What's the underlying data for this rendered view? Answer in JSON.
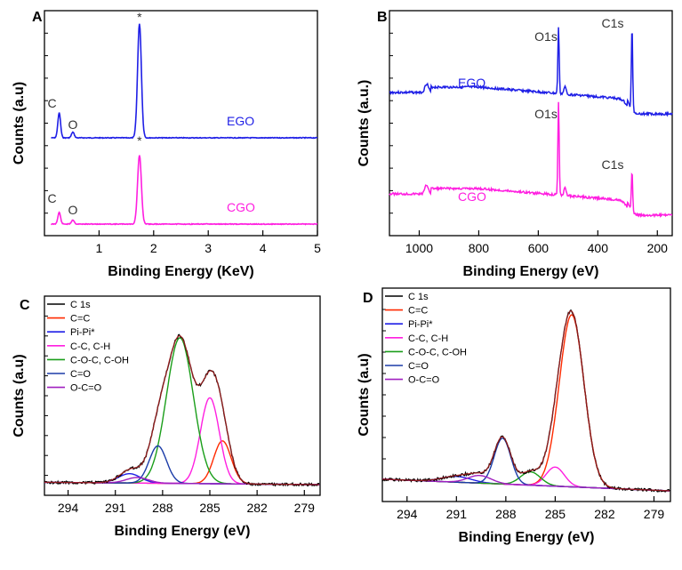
{
  "chart_data": [
    {
      "panel": "A",
      "type": "line",
      "title": "",
      "xlabel": "Binding Energy (KeV)",
      "ylabel": "Counts (a.u)",
      "xlim": [
        0,
        5
      ],
      "xticks": [
        "1",
        "2",
        "3",
        "4",
        "5"
      ],
      "series": [
        {
          "name": "EGO",
          "color": "#1f1fe6",
          "peaks": [
            {
              "x": 0.27,
              "h": 0.22
            },
            {
              "x": 0.52,
              "h": 0.05
            },
            {
              "x": 1.74,
              "h": 1.0
            }
          ]
        },
        {
          "name": "CGO",
          "color": "#ff1fe0",
          "peaks": [
            {
              "x": 0.27,
              "h": 0.14
            },
            {
              "x": 0.52,
              "h": 0.05
            },
            {
              "x": 1.74,
              "h": 0.82
            }
          ]
        }
      ],
      "annotations": [
        {
          "text": "*",
          "series": "EGO",
          "x": 1.74
        },
        {
          "text": "C",
          "series": "EGO",
          "x": 0.27
        },
        {
          "text": "O",
          "series": "EGO",
          "x": 0.52
        },
        {
          "text": "*",
          "series": "CGO",
          "x": 1.74
        },
        {
          "text": "C",
          "series": "CGO",
          "x": 0.27
        },
        {
          "text": "O",
          "series": "CGO",
          "x": 0.52
        }
      ]
    },
    {
      "panel": "B",
      "type": "line",
      "title": "",
      "xlabel": "Binding Energy (eV)",
      "ylabel": "Counts (a.u.)",
      "xlim": [
        1100,
        150
      ],
      "xticks": [
        "1000",
        "800",
        "600",
        "400",
        "200"
      ],
      "series": [
        {
          "name": "EGO",
          "color": "#1f1fe6"
        },
        {
          "name": "CGO",
          "color": "#ff1fe0"
        }
      ],
      "annotations": [
        {
          "text": "O1s",
          "series": "EGO",
          "x": 532
        },
        {
          "text": "C1s",
          "series": "EGO",
          "x": 285
        },
        {
          "text": "O1s",
          "series": "CGO",
          "x": 532
        },
        {
          "text": "C1s",
          "series": "CGO",
          "x": 285
        }
      ]
    },
    {
      "panel": "C",
      "type": "line",
      "title": "",
      "xlabel": "Binding Energy (eV)",
      "ylabel": "Counts (a.u)",
      "xlim": [
        295.5,
        278
      ],
      "xticks": [
        "294",
        "291",
        "288",
        "285",
        "282",
        "279"
      ],
      "series": [
        {
          "name": "C 1s",
          "color": "#000000",
          "peak": null,
          "h": null
        },
        {
          "name": "C=C",
          "color": "#ff2a00",
          "peak": 284.2,
          "h": 0.23
        },
        {
          "name": "Pi-Pi*",
          "color": "#1f1fe6",
          "peak": 290.1,
          "h": 0.05
        },
        {
          "name": "C-C, C-H",
          "color": "#ff1fe0",
          "peak": 285.0,
          "h": 0.46
        },
        {
          "name": "C-O-C, C-OH",
          "color": "#1a9e1a",
          "peak": 286.9,
          "h": 0.78
        },
        {
          "name": "C=O",
          "color": "#1b3ca8",
          "peak": 288.3,
          "h": 0.2
        },
        {
          "name": "O-C=O",
          "color": "#a020c0",
          "peak": 289.6,
          "h": 0.03
        }
      ]
    },
    {
      "panel": "D",
      "type": "line",
      "title": "",
      "xlabel": "Binding Energy (eV)",
      "ylabel": "Counts (a.u)",
      "xlim": [
        295.5,
        278
      ],
      "xticks": [
        "294",
        "291",
        "288",
        "285",
        "282",
        "279"
      ],
      "series": [
        {
          "name": "C 1s",
          "color": "#000000",
          "peak": null,
          "h": null
        },
        {
          "name": "C=C",
          "color": "#ff2a00",
          "peak": 284.0,
          "h": 0.9
        },
        {
          "name": "Pi-Pi*",
          "color": "#1f1fe6",
          "peak": 291.0,
          "h": 0.03
        },
        {
          "name": "C-C, C-H",
          "color": "#ff1fe0",
          "peak": 285.0,
          "h": 0.1
        },
        {
          "name": "C-O-C, C-OH",
          "color": "#1a9e1a",
          "peak": 286.5,
          "h": 0.07
        },
        {
          "name": "C=O",
          "color": "#1b3ca8",
          "peak": 288.2,
          "h": 0.24
        },
        {
          "name": "O-C=O",
          "color": "#a020c0",
          "peak": 289.6,
          "h": 0.04
        }
      ]
    }
  ]
}
